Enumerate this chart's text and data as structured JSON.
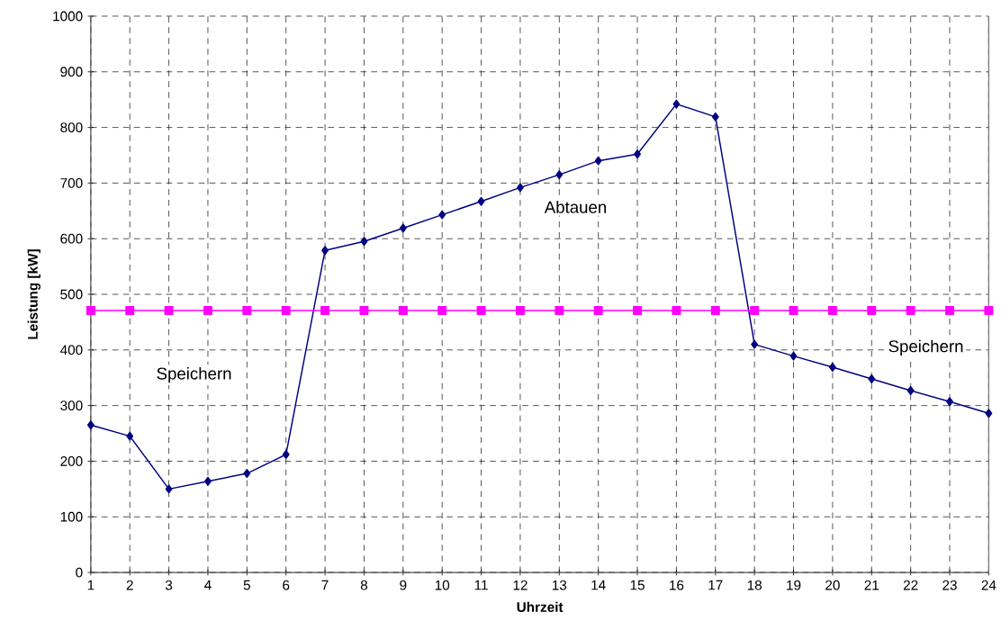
{
  "chart_data": {
    "type": "line",
    "xlabel": "Uhrzeit",
    "ylabel": "Leistung   [kW]",
    "categories": [
      "1",
      "2",
      "3",
      "4",
      "5",
      "6",
      "7",
      "8",
      "9",
      "10",
      "11",
      "12",
      "13",
      "14",
      "15",
      "16",
      "17",
      "18",
      "19",
      "20",
      "21",
      "22",
      "23",
      "24"
    ],
    "series": [
      {
        "color": "#000080",
        "marker": "diamond",
        "values": [
          265,
          245,
          150,
          164,
          178,
          212,
          579,
          595,
          619,
          643,
          667,
          692,
          715,
          740,
          752,
          842,
          819,
          410,
          389,
          369,
          348,
          327,
          307,
          286
        ]
      },
      {
        "color": "#ff00ff",
        "marker": "square",
        "values": [
          471,
          471,
          471,
          471,
          471,
          471,
          471,
          471,
          471,
          471,
          471,
          471,
          471,
          471,
          471,
          471,
          471,
          471,
          471,
          471,
          471,
          471,
          471,
          471
        ]
      }
    ],
    "ylim": [
      0,
      1000
    ],
    "yticks": [
      0,
      100,
      200,
      300,
      400,
      500,
      600,
      700,
      800,
      900,
      1000
    ],
    "grid": true,
    "line_style": "solid",
    "annotations": [
      "Speichern",
      "Abtauen",
      "Speichern"
    ]
  }
}
